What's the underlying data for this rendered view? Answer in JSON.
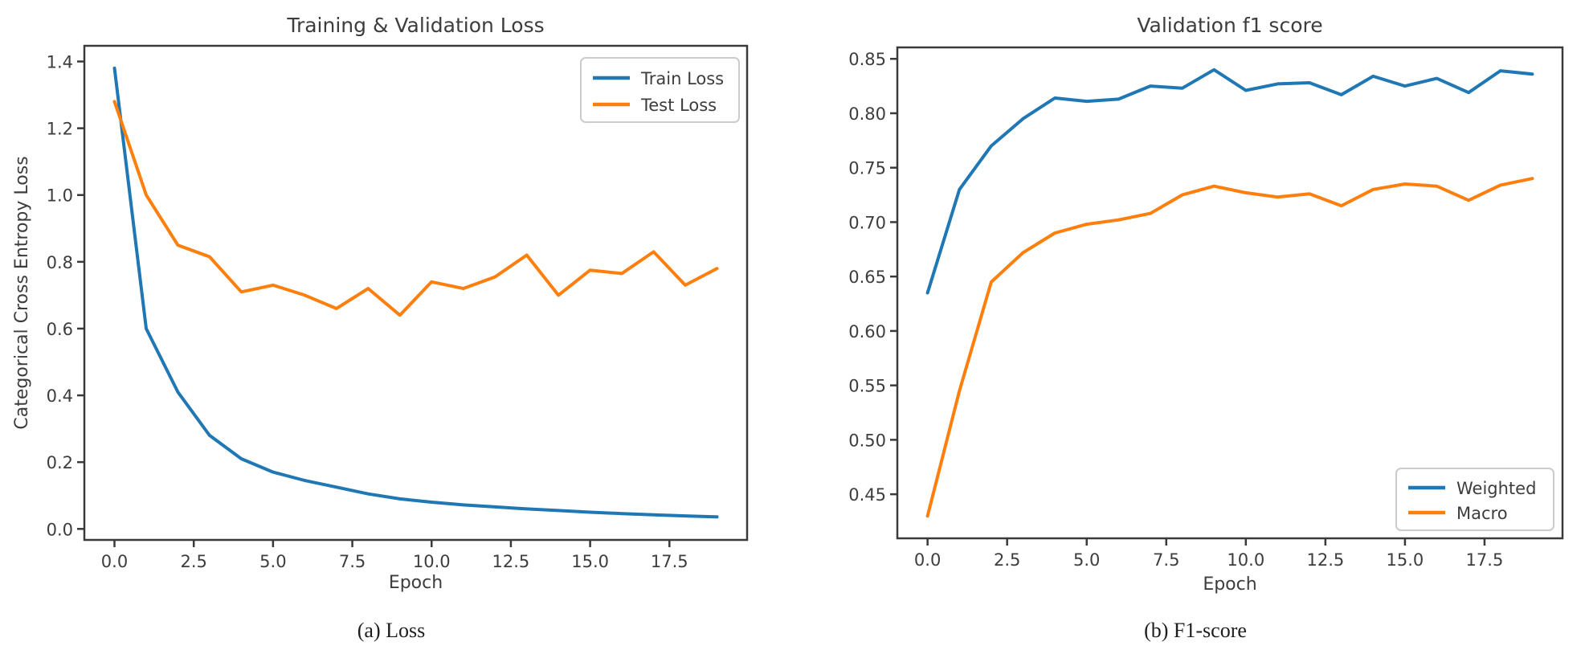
{
  "figure": {
    "captions": {
      "a": "(a) Loss",
      "b": "(b) F1-score"
    }
  },
  "colors": {
    "blue": "#1f77b4",
    "orange": "#ff7f0e",
    "text": "#3d3d3d",
    "spine": "#3a3a3a",
    "legend_border": "#cccccc"
  },
  "chart_data": [
    {
      "type": "line",
      "title": "Training & Validation Loss",
      "xlabel": "Epoch",
      "ylabel": "Categorical Cross Entropy Loss",
      "x": [
        0,
        1,
        2,
        3,
        4,
        5,
        6,
        7,
        8,
        9,
        10,
        11,
        12,
        13,
        14,
        15,
        16,
        17,
        18,
        19
      ],
      "series": [
        {
          "name": "Train Loss",
          "color": "#1f77b4",
          "values": [
            1.38,
            0.6,
            0.41,
            0.28,
            0.21,
            0.17,
            0.145,
            0.125,
            0.105,
            0.09,
            0.08,
            0.072,
            0.066,
            0.06,
            0.055,
            0.05,
            0.046,
            0.042,
            0.039,
            0.036
          ]
        },
        {
          "name": "Test Loss",
          "color": "#ff7f0e",
          "values": [
            1.28,
            1.0,
            0.85,
            0.815,
            0.71,
            0.73,
            0.7,
            0.66,
            0.72,
            0.64,
            0.74,
            0.72,
            0.755,
            0.82,
            0.7,
            0.775,
            0.765,
            0.83,
            0.73,
            0.78
          ]
        }
      ],
      "xlim": [
        -0.95,
        19.95
      ],
      "ylim": [
        -0.033,
        1.447
      ],
      "xticks": {
        "values": [
          0,
          2.5,
          5,
          7.5,
          10,
          12.5,
          15,
          17.5
        ],
        "labels": [
          "0.0",
          "2.5",
          "5.0",
          "7.5",
          "10.0",
          "12.5",
          "15.0",
          "17.5"
        ]
      },
      "yticks": {
        "values": [
          0,
          0.2,
          0.4,
          0.6,
          0.8,
          1.0,
          1.2,
          1.4
        ],
        "labels": [
          "0.0",
          "0.2",
          "0.4",
          "0.6",
          "0.8",
          "1.0",
          "1.2",
          "1.4"
        ]
      },
      "legend_position": "upper-right",
      "grid": false
    },
    {
      "type": "line",
      "title": "Validation f1 score",
      "xlabel": "Epoch",
      "ylabel": "",
      "x": [
        0,
        1,
        2,
        3,
        4,
        5,
        6,
        7,
        8,
        9,
        10,
        11,
        12,
        13,
        14,
        15,
        16,
        17,
        18,
        19
      ],
      "series": [
        {
          "name": "Weighted",
          "color": "#1f77b4",
          "values": [
            0.635,
            0.73,
            0.77,
            0.795,
            0.814,
            0.811,
            0.813,
            0.825,
            0.823,
            0.84,
            0.821,
            0.827,
            0.828,
            0.817,
            0.834,
            0.825,
            0.832,
            0.819,
            0.839,
            0.836
          ]
        },
        {
          "name": "Macro",
          "color": "#ff7f0e",
          "values": [
            0.43,
            0.545,
            0.645,
            0.672,
            0.69,
            0.698,
            0.702,
            0.708,
            0.725,
            0.733,
            0.727,
            0.723,
            0.726,
            0.715,
            0.73,
            0.735,
            0.733,
            0.72,
            0.734,
            0.74
          ]
        }
      ],
      "xlim": [
        -0.95,
        19.95
      ],
      "ylim": [
        0.4095,
        0.8605
      ],
      "xticks": {
        "values": [
          0,
          2.5,
          5,
          7.5,
          10,
          12.5,
          15,
          17.5
        ],
        "labels": [
          "0.0",
          "2.5",
          "5.0",
          "7.5",
          "10.0",
          "12.5",
          "15.0",
          "17.5"
        ]
      },
      "yticks": {
        "values": [
          0.45,
          0.5,
          0.55,
          0.6,
          0.65,
          0.7,
          0.75,
          0.8,
          0.85
        ],
        "labels": [
          "0.45",
          "0.50",
          "0.55",
          "0.60",
          "0.65",
          "0.70",
          "0.75",
          "0.80",
          "0.85"
        ]
      },
      "legend_position": "lower-right",
      "grid": false
    }
  ]
}
